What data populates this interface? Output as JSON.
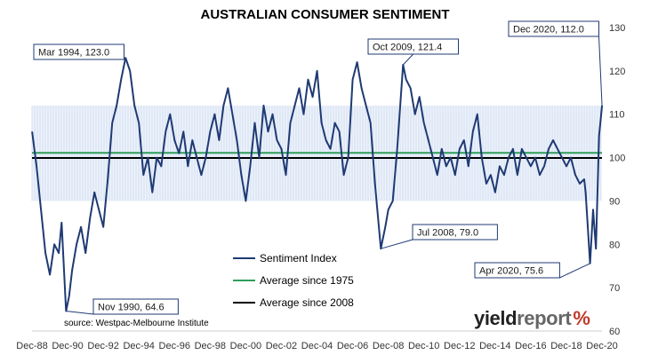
{
  "page": {
    "logo": {
      "part1": "yield",
      "part2": "report",
      "symbol": "%"
    }
  },
  "chart_data": {
    "type": "line",
    "title": "AUSTRALIAN CONSUMER SENTIMENT",
    "source": "source: Westpac-Melbourne Institute",
    "x_tick_labels": [
      "Dec-88",
      "Dec-90",
      "Dec-92",
      "Dec-94",
      "Dec-96",
      "Dec-98",
      "Dec-00",
      "Dec-02",
      "Dec-04",
      "Dec-06",
      "Dec-08",
      "Dec-10",
      "Dec-12",
      "Dec-14",
      "Dec-16",
      "Dec-18",
      "Dec-20"
    ],
    "xlim": [
      1988.917,
      2020.917
    ],
    "ylim": [
      60,
      130
    ],
    "y_ticks": [
      60,
      70,
      80,
      90,
      100,
      110,
      120,
      130
    ],
    "band": {
      "from": 90,
      "to": 112
    },
    "colors": {
      "series": "#1f3a73",
      "avg1975": "#2e9e59",
      "avg2008": "#000000",
      "band": "#c9d8ef",
      "annotation_border": "#1f3a73"
    },
    "legend": [
      {
        "label": "Sentiment Index",
        "key": "series"
      },
      {
        "label": "Average since 1975",
        "key": "avg1975"
      },
      {
        "label": "Average since 2008",
        "key": "avg2008"
      }
    ],
    "reference_lines": [
      {
        "name": "Average since 1975",
        "value": 101.1,
        "key": "avg1975"
      },
      {
        "name": "Average since 2008",
        "value": 99.9,
        "key": "avg2008"
      }
    ],
    "annotations": [
      {
        "text": "Mar 1994, 123.0",
        "x": 1994.17,
        "y": 123.0
      },
      {
        "text": "Oct 2009, 121.4",
        "x": 2009.75,
        "y": 121.4
      },
      {
        "text": "Dec 2020, 112.0",
        "x": 2020.92,
        "y": 112.0
      },
      {
        "text": "Jul 2008, 79.0",
        "x": 2008.5,
        "y": 79.0
      },
      {
        "text": "Apr 2020, 75.6",
        "x": 2020.25,
        "y": 75.6
      },
      {
        "text": "Nov 1990, 64.6",
        "x": 1990.83,
        "y": 64.6
      }
    ],
    "series": [
      {
        "name": "Sentiment Index",
        "points": [
          [
            1988.92,
            106
          ],
          [
            1989.17,
            98
          ],
          [
            1989.42,
            88
          ],
          [
            1989.67,
            78
          ],
          [
            1989.92,
            73
          ],
          [
            1990.17,
            80
          ],
          [
            1990.42,
            78
          ],
          [
            1990.58,
            85
          ],
          [
            1990.83,
            64.6
          ],
          [
            1991.0,
            68
          ],
          [
            1991.17,
            74
          ],
          [
            1991.42,
            80
          ],
          [
            1991.67,
            84
          ],
          [
            1991.92,
            78
          ],
          [
            1992.17,
            86
          ],
          [
            1992.42,
            92
          ],
          [
            1992.67,
            88
          ],
          [
            1992.92,
            84
          ],
          [
            1993.17,
            95
          ],
          [
            1993.42,
            108
          ],
          [
            1993.67,
            112
          ],
          [
            1993.92,
            118
          ],
          [
            1994.17,
            123
          ],
          [
            1994.42,
            120
          ],
          [
            1994.67,
            112
          ],
          [
            1994.92,
            108
          ],
          [
            1995.17,
            96
          ],
          [
            1995.42,
            100
          ],
          [
            1995.67,
            92
          ],
          [
            1995.92,
            100
          ],
          [
            1996.17,
            98
          ],
          [
            1996.42,
            106
          ],
          [
            1996.67,
            110
          ],
          [
            1996.92,
            104
          ],
          [
            1997.17,
            101
          ],
          [
            1997.42,
            106
          ],
          [
            1997.67,
            98
          ],
          [
            1997.92,
            104
          ],
          [
            1998.17,
            100
          ],
          [
            1998.42,
            96
          ],
          [
            1998.67,
            100
          ],
          [
            1998.92,
            106
          ],
          [
            1999.17,
            110
          ],
          [
            1999.42,
            104
          ],
          [
            1999.67,
            112
          ],
          [
            1999.92,
            116
          ],
          [
            2000.17,
            110
          ],
          [
            2000.42,
            104
          ],
          [
            2000.67,
            96
          ],
          [
            2000.92,
            90
          ],
          [
            2001.17,
            98
          ],
          [
            2001.42,
            108
          ],
          [
            2001.67,
            100
          ],
          [
            2001.92,
            112
          ],
          [
            2002.17,
            106
          ],
          [
            2002.42,
            110
          ],
          [
            2002.67,
            104
          ],
          [
            2002.92,
            102
          ],
          [
            2003.17,
            96
          ],
          [
            2003.42,
            108
          ],
          [
            2003.67,
            112
          ],
          [
            2003.92,
            116
          ],
          [
            2004.17,
            110
          ],
          [
            2004.42,
            118
          ],
          [
            2004.67,
            114
          ],
          [
            2004.92,
            120
          ],
          [
            2005.17,
            108
          ],
          [
            2005.42,
            104
          ],
          [
            2005.67,
            102
          ],
          [
            2005.92,
            108
          ],
          [
            2006.17,
            106
          ],
          [
            2006.42,
            96
          ],
          [
            2006.67,
            100
          ],
          [
            2006.92,
            118
          ],
          [
            2007.17,
            122
          ],
          [
            2007.42,
            116
          ],
          [
            2007.67,
            112
          ],
          [
            2007.92,
            108
          ],
          [
            2008.17,
            94
          ],
          [
            2008.5,
            79
          ],
          [
            2008.75,
            84
          ],
          [
            2008.92,
            88
          ],
          [
            2009.17,
            90
          ],
          [
            2009.42,
            102
          ],
          [
            2009.75,
            121.4
          ],
          [
            2009.92,
            118
          ],
          [
            2010.17,
            116
          ],
          [
            2010.42,
            110
          ],
          [
            2010.67,
            114
          ],
          [
            2010.92,
            108
          ],
          [
            2011.17,
            104
          ],
          [
            2011.42,
            100
          ],
          [
            2011.67,
            96
          ],
          [
            2011.92,
            102
          ],
          [
            2012.17,
            98
          ],
          [
            2012.42,
            100
          ],
          [
            2012.67,
            96
          ],
          [
            2012.92,
            102
          ],
          [
            2013.17,
            104
          ],
          [
            2013.42,
            98
          ],
          [
            2013.67,
            106
          ],
          [
            2013.92,
            110
          ],
          [
            2014.17,
            100
          ],
          [
            2014.42,
            94
          ],
          [
            2014.67,
            96
          ],
          [
            2014.92,
            92
          ],
          [
            2015.17,
            98
          ],
          [
            2015.42,
            96
          ],
          [
            2015.67,
            100
          ],
          [
            2015.92,
            102
          ],
          [
            2016.17,
            96
          ],
          [
            2016.42,
            102
          ],
          [
            2016.67,
            100
          ],
          [
            2016.92,
            98
          ],
          [
            2017.17,
            100
          ],
          [
            2017.42,
            96
          ],
          [
            2017.67,
            98
          ],
          [
            2017.92,
            102
          ],
          [
            2018.17,
            104
          ],
          [
            2018.42,
            102
          ],
          [
            2018.67,
            100
          ],
          [
            2018.92,
            98
          ],
          [
            2019.17,
            100
          ],
          [
            2019.42,
            96
          ],
          [
            2019.67,
            94
          ],
          [
            2019.92,
            95
          ],
          [
            2020.0,
            92
          ],
          [
            2020.25,
            75.6
          ],
          [
            2020.42,
            88
          ],
          [
            2020.58,
            79
          ],
          [
            2020.75,
            105
          ],
          [
            2020.92,
            112
          ]
        ]
      }
    ]
  }
}
